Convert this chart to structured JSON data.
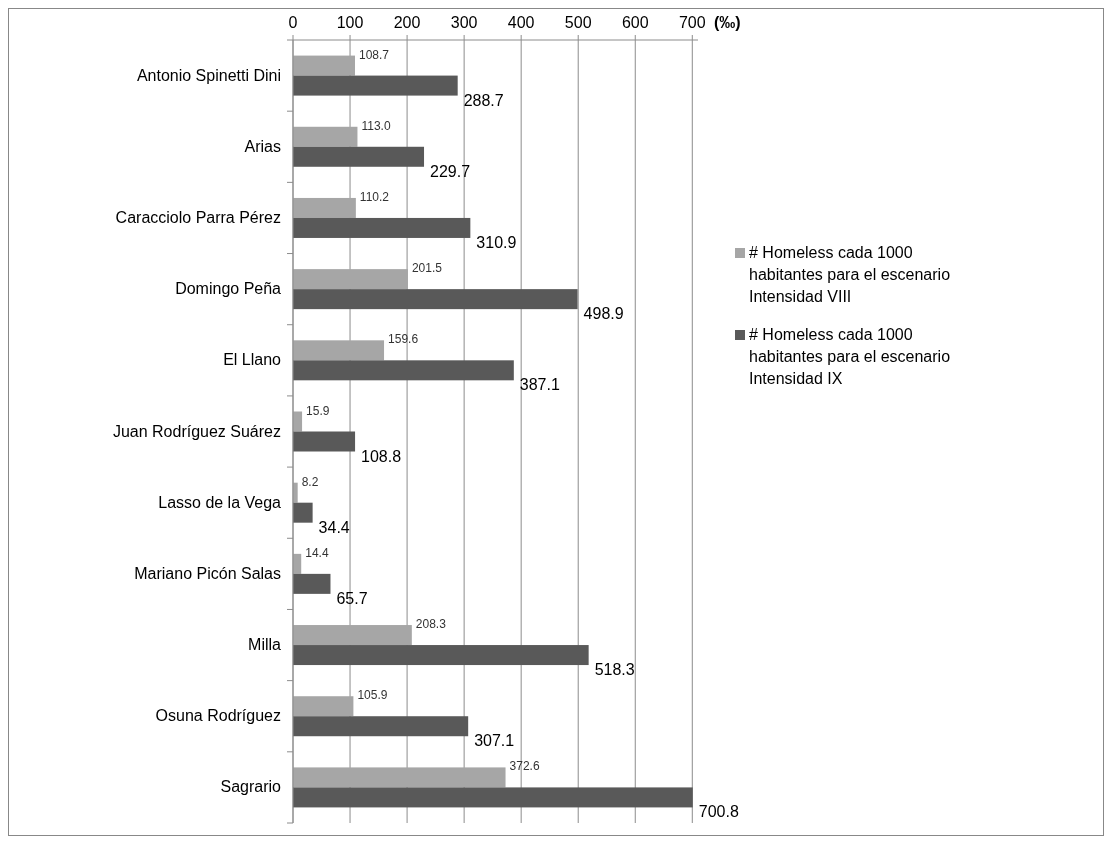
{
  "chart_data": {
    "type": "bar",
    "orientation": "horizontal",
    "xlabel": "(‰)",
    "categories": [
      "Antonio Spinetti Dini",
      "Arias",
      "Caracciolo Parra Pérez",
      "Domingo Peña",
      "El Llano",
      "Juan Rodríguez Suárez",
      "Lasso de la Vega",
      "Mariano Picón Salas",
      "Milla",
      "Osuna Rodríguez",
      "Sagrario"
    ],
    "series": [
      {
        "name": "# Homeless cada 1000 habitantes para el escenario Intensidad VIII",
        "color": "#a6a6a6",
        "values": [
          108.7,
          113.0,
          110.2,
          201.5,
          159.6,
          15.9,
          8.2,
          14.4,
          208.3,
          105.9,
          372.6
        ],
        "value_labels": [
          "108.7",
          "113.0",
          "110.2",
          "201.5",
          "159.6",
          "15.9",
          "8.2",
          "14.4",
          "208.3",
          "105.9",
          "372.6"
        ]
      },
      {
        "name": "# Homeless cada 1000 habitantes para el escenario Intensidad IX",
        "color": "#595959",
        "values": [
          288.7,
          229.7,
          310.9,
          498.9,
          387.1,
          108.8,
          34.4,
          65.7,
          518.3,
          307.1,
          700.8
        ],
        "value_labels": [
          "288.7",
          "229.7",
          "310.9",
          "498.9",
          "387.1",
          "108.8",
          "34.4",
          "65.7",
          "518.3",
          "307.1",
          "700.8"
        ]
      }
    ],
    "xlim": [
      0,
      710
    ],
    "xticks": [
      0,
      100,
      200,
      300,
      400,
      500,
      600,
      700
    ],
    "grid": "x",
    "legend": "right"
  }
}
